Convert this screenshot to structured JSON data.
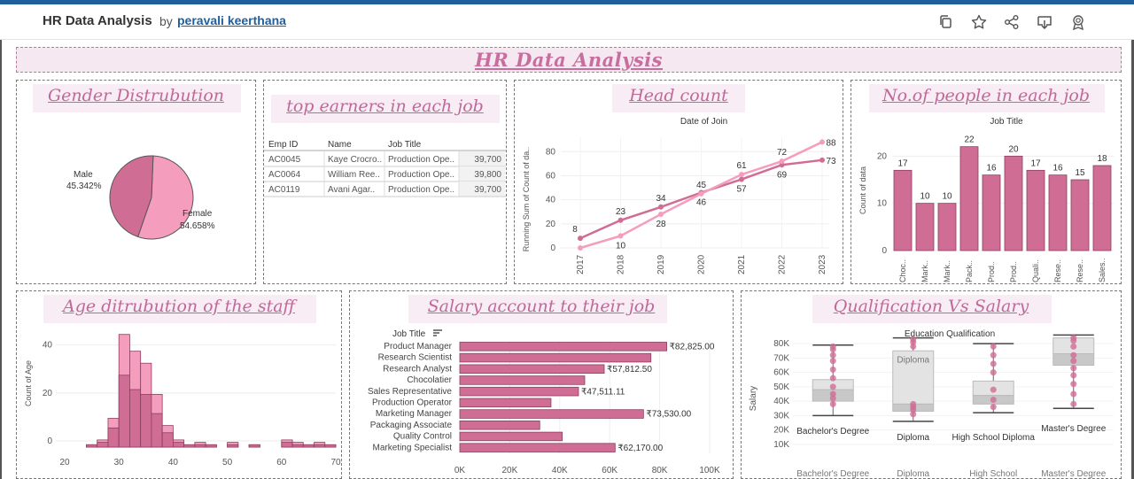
{
  "header": {
    "title": "HR Data Analysis",
    "by": "by",
    "author": "peravali keerthana",
    "icons": [
      "copy-icon",
      "star-icon",
      "share-icon",
      "download-icon",
      "badge-icon"
    ]
  },
  "banner": {
    "title": "HR Data Analysis"
  },
  "panels": {
    "gender": "Gender Distrubution",
    "top_earners": "top earners in each job",
    "head_count": "Head count",
    "people_job": "No.of people in each job",
    "age": "Age ditrubution of the staff",
    "salary": "Salary account to their job",
    "qualification": "Qualification Vs Salary"
  },
  "colors": {
    "dark": "#d06d95",
    "light": "#f59dbc",
    "accent": "#c0689a"
  },
  "chart_data": [
    {
      "id": "gender",
      "type": "pie",
      "labels": [
        "Male",
        "Female"
      ],
      "values": [
        45.342,
        54.658
      ],
      "value_labels": [
        "45.342%",
        "54.658%"
      ]
    },
    {
      "id": "top_earners",
      "type": "table",
      "columns": [
        "Emp ID",
        "Name",
        "Job Title",
        ""
      ],
      "rows": [
        [
          "AC0045",
          "Kaye Crocro..",
          "Production Ope..",
          "39,700"
        ],
        [
          "AC0064",
          "William Ree..",
          "Production Ope..",
          "39,800"
        ],
        [
          "AC0119",
          "Avani Agar..",
          "Production Ope..",
          "39,700"
        ]
      ]
    },
    {
      "id": "head_count",
      "type": "line",
      "title": "Date of Join",
      "ylabel": "Running Sum of Count of da..",
      "x": [
        "2017",
        "2018",
        "2019",
        "2020",
        "2021",
        "2022",
        "2023"
      ],
      "yticks": [
        0,
        20,
        40,
        60,
        80
      ],
      "ylim": [
        0,
        92
      ],
      "series": [
        {
          "values": [
            8,
            23,
            34,
            46,
            57,
            69,
            73
          ],
          "labels": [
            "8",
            "23",
            "34",
            "46",
            "57",
            "69",
            "73"
          ]
        },
        {
          "values": [
            0,
            10,
            28,
            45,
            61,
            72,
            88
          ],
          "labels": [
            "",
            "10",
            "28",
            "45",
            "61",
            "72",
            "88"
          ]
        }
      ]
    },
    {
      "id": "people_job",
      "type": "bar",
      "title": "Job Title",
      "ylabel": "Count of data",
      "categories": [
        "Choc..",
        "Mark..",
        "Mark..",
        "Pack..",
        "Prod..",
        "Prod..",
        "Quali..",
        "Rese..",
        "Rese..",
        "Sales.."
      ],
      "values": [
        17,
        10,
        10,
        22,
        16,
        20,
        17,
        16,
        15,
        18
      ],
      "yticks": [
        0,
        10,
        20
      ],
      "ylim": [
        0,
        24
      ]
    },
    {
      "id": "age",
      "type": "bar",
      "ylabel": "Count of Age",
      "xticks": [
        "20",
        "30",
        "40",
        "50",
        "60",
        "70"
      ],
      "yticks": [
        0,
        20,
        40
      ],
      "xlim": [
        20,
        70
      ],
      "ylim": [
        0,
        48
      ],
      "bins_start": [
        24,
        26,
        28,
        30,
        32,
        34,
        36,
        38,
        40,
        42,
        44,
        46,
        50,
        54,
        60,
        62,
        64,
        66,
        68
      ],
      "bin_width": 2,
      "total": [
        1,
        3,
        12,
        47,
        40,
        35,
        22,
        9,
        3,
        1,
        2,
        1,
        2,
        1,
        3,
        2,
        1,
        2,
        1
      ],
      "dark": [
        1,
        2,
        8,
        30,
        24,
        22,
        14,
        6,
        2,
        1,
        1,
        1,
        1,
        1,
        2,
        1,
        1,
        1,
        1
      ]
    },
    {
      "id": "salary",
      "type": "bar",
      "header": "Job Title",
      "categories": [
        "Product Manager",
        "Research Scientist",
        "Research Analyst",
        "Chocolatier",
        "Sales Representative",
        "Production Operator",
        "Marketing Manager",
        "Packaging Associate",
        "Quality Control",
        "Marketing Specialist"
      ],
      "values": [
        82825,
        76500,
        57812.5,
        50000,
        47511.11,
        36500,
        73530,
        32000,
        41000,
        62170
      ],
      "value_labels": [
        "₹82,825.00",
        "",
        "₹57,812.50",
        "",
        "₹47,511.11",
        "",
        "₹73,530.00",
        "",
        "",
        "₹62,170.00"
      ],
      "xticks": [
        "0K",
        "20K",
        "40K",
        "60K",
        "80K",
        "100K"
      ],
      "xlim": [
        0,
        100000
      ]
    },
    {
      "id": "qualification",
      "type": "box",
      "title": "Education Qualification",
      "ylabel": "Salary",
      "yticks": [
        "10K",
        "20K",
        "30K",
        "40K",
        "50K",
        "60K",
        "70K",
        "80K"
      ],
      "ylim": [
        5000,
        85000
      ],
      "categories": [
        "Bachelor's Degree",
        "Diploma",
        "High School Diploma",
        "Master's Degree"
      ],
      "bottom_labels": [
        "Bachelor's Degree",
        "Diploma",
        "High School",
        "Master's Degree"
      ],
      "box_label": "Diploma",
      "boxes": [
        {
          "min": 30000,
          "q1": 40000,
          "median": 48000,
          "q3": 55000,
          "max": 79000,
          "points": [
            38000,
            42000,
            45000,
            50000,
            56000,
            62000,
            68000,
            72000,
            76000,
            78000
          ]
        },
        {
          "min": 26000,
          "q1": 33000,
          "median": 38000,
          "q3": 75000,
          "max": 84000,
          "points": [
            31000,
            34000,
            36000,
            38000,
            78000,
            81000,
            83000
          ]
        },
        {
          "min": 32000,
          "q1": 38000,
          "median": 44000,
          "q3": 54000,
          "max": 80000,
          "points": [
            36000,
            41000,
            48000,
            60000,
            66000,
            72000,
            78000
          ]
        },
        {
          "min": 35000,
          "q1": 65000,
          "median": 73000,
          "q3": 84000,
          "max": 86000,
          "points": [
            38000,
            45000,
            52000,
            58000,
            63000,
            68000,
            72000,
            78000,
            82000,
            84000
          ]
        }
      ]
    }
  ]
}
